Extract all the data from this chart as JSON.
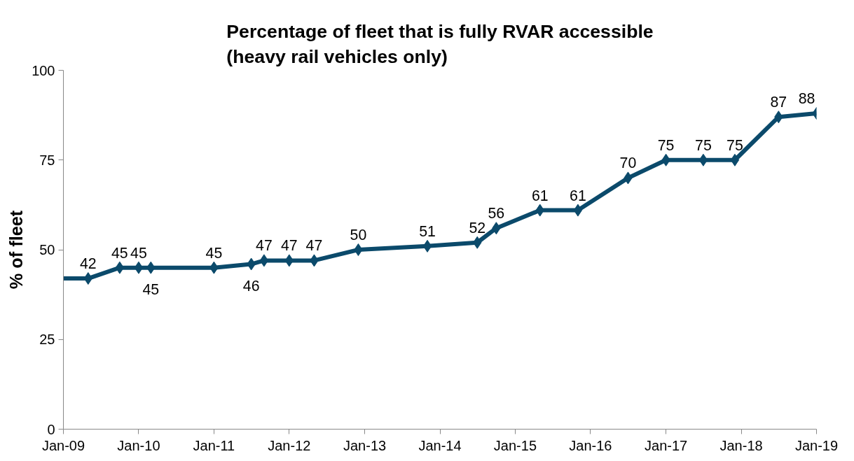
{
  "chart_data": {
    "type": "line",
    "title": "Percentage of fleet that is fully RVAR accessible\n(heavy rail vehicles only)",
    "ylabel": "% of fleet",
    "x": [
      "2009-01",
      "2009-05",
      "2009-10",
      "2010-01",
      "2010-03",
      "2011-01",
      "2011-07",
      "2011-09",
      "2012-01",
      "2012-05",
      "2012-12",
      "2013-11",
      "2014-07",
      "2014-10",
      "2015-05",
      "2015-11",
      "2016-07",
      "2017-01",
      "2017-07",
      "2017-12",
      "2018-07",
      "2019-01"
    ],
    "series": [
      {
        "color": "#0b4a6b",
        "values": [
          42,
          42,
          45,
          45,
          45,
          45,
          46,
          47,
          47,
          47,
          50,
          51,
          52,
          56,
          61,
          61,
          70,
          75,
          75,
          75,
          87,
          88
        ],
        "value_labels": [
          null,
          "42",
          "45",
          "45",
          "45",
          "45",
          "46",
          "47",
          "47",
          "47",
          "50",
          "51",
          "52",
          "56",
          "61",
          "61",
          "70",
          "75",
          "75",
          "75",
          "87",
          "88"
        ]
      }
    ],
    "xlim": [
      "2009-01",
      "2019-01"
    ],
    "xticks": [
      {
        "value": "2009-01",
        "label": "Jan-09"
      },
      {
        "value": "2010-01",
        "label": "Jan-10"
      },
      {
        "value": "2011-01",
        "label": "Jan-11"
      },
      {
        "value": "2012-01",
        "label": "Jan-12"
      },
      {
        "value": "2013-01",
        "label": "Jan-13"
      },
      {
        "value": "2014-01",
        "label": "Jan-14"
      },
      {
        "value": "2015-01",
        "label": "Jan-15"
      },
      {
        "value": "2016-01",
        "label": "Jan-16"
      },
      {
        "value": "2017-01",
        "label": "Jan-17"
      },
      {
        "value": "2018-01",
        "label": "Jan-18"
      },
      {
        "value": "2019-01",
        "label": "Jan-19"
      }
    ],
    "ylim": [
      0,
      100
    ],
    "yticks": [
      0,
      25,
      50,
      75,
      100
    ],
    "grid": false,
    "marker": "diamond",
    "line_style": "solid"
  }
}
